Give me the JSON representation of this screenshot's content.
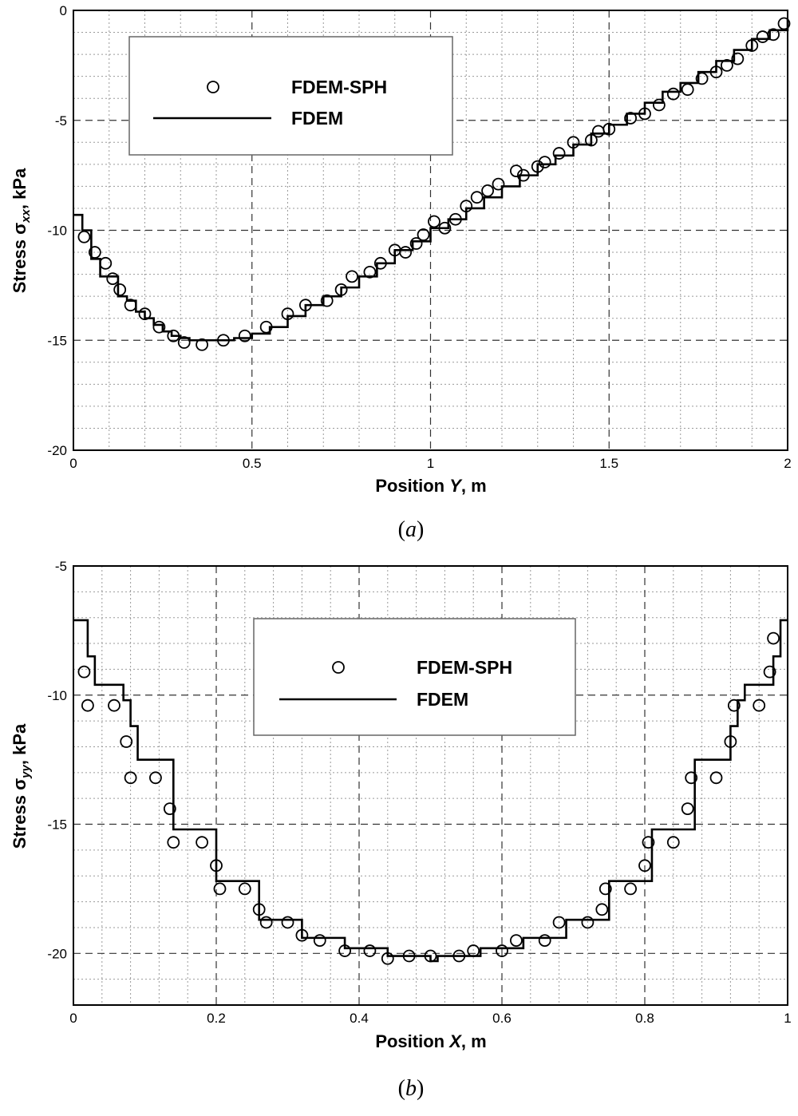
{
  "figure": {
    "panels": [
      {
        "caption_letter": "a",
        "x_axis_label": {
          "prefix": "Position ",
          "var": "Y",
          "suffix": ", m"
        },
        "y_axis_label": {
          "prefix": "Stress σ",
          "sub": "xx",
          "suffix": ", kPa"
        },
        "legend": {
          "markers_label": "FDEM-SPH",
          "line_label": "FDEM"
        }
      },
      {
        "caption_letter": "b",
        "x_axis_label": {
          "prefix": "Position ",
          "var": "X",
          "suffix": ", m"
        },
        "y_axis_label": {
          "prefix": "Stress σ",
          "sub": "yy",
          "suffix": ", kPa"
        },
        "legend": {
          "markers_label": "FDEM-SPH",
          "line_label": "FDEM"
        }
      }
    ]
  },
  "chart_data": [
    {
      "type": "line",
      "xlim": [
        0,
        2
      ],
      "ylim": [
        -20,
        0
      ],
      "x_ticks": [
        "0",
        "0.5",
        "1",
        "1.5",
        "2"
      ],
      "y_ticks": [
        "0",
        "-5",
        "-10",
        "-15",
        "-20"
      ],
      "x_tick_values": [
        0,
        0.5,
        1,
        1.5,
        2
      ],
      "y_tick_values": [
        0,
        -5,
        -10,
        -15,
        -20
      ],
      "grid": true,
      "legend_position": "top-left",
      "series": [
        {
          "name": "FDEM-SPH",
          "style": "open-circle",
          "x": [
            0.03,
            0.06,
            0.09,
            0.11,
            0.13,
            0.16,
            0.2,
            0.24,
            0.28,
            0.31,
            0.36,
            0.42,
            0.48,
            0.54,
            0.6,
            0.65,
            0.71,
            0.75,
            0.78,
            0.83,
            0.86,
            0.9,
            0.93,
            0.96,
            0.98,
            1.01,
            1.04,
            1.07,
            1.1,
            1.13,
            1.16,
            1.19,
            1.24,
            1.26,
            1.3,
            1.32,
            1.36,
            1.4,
            1.45,
            1.47,
            1.5,
            1.56,
            1.6,
            1.64,
            1.68,
            1.72,
            1.76,
            1.8,
            1.83,
            1.86,
            1.9,
            1.93,
            1.96,
            1.99
          ],
          "y": [
            -10.3,
            -11.0,
            -11.5,
            -12.2,
            -12.7,
            -13.4,
            -13.8,
            -14.4,
            -14.8,
            -15.1,
            -15.2,
            -15.0,
            -14.8,
            -14.4,
            -13.8,
            -13.4,
            -13.2,
            -12.7,
            -12.1,
            -11.9,
            -11.5,
            -10.9,
            -11.0,
            -10.6,
            -10.2,
            -9.6,
            -9.9,
            -9.5,
            -8.9,
            -8.5,
            -8.2,
            -7.9,
            -7.3,
            -7.5,
            -7.1,
            -6.9,
            -6.5,
            -6.0,
            -5.9,
            -5.5,
            -5.4,
            -4.9,
            -4.7,
            -4.3,
            -3.8,
            -3.6,
            -3.1,
            -2.8,
            -2.5,
            -2.2,
            -1.6,
            -1.2,
            -1.1,
            -0.6
          ]
        },
        {
          "name": "FDEM",
          "style": "step-line",
          "x": [
            0.0,
            0.025,
            0.05,
            0.075,
            0.1,
            0.125,
            0.15,
            0.175,
            0.2,
            0.225,
            0.25,
            0.275,
            0.3,
            0.325,
            0.35,
            0.4,
            0.45,
            0.5,
            0.55,
            0.6,
            0.65,
            0.7,
            0.75,
            0.8,
            0.85,
            0.9,
            0.95,
            1.0,
            1.05,
            1.1,
            1.15,
            1.2,
            1.25,
            1.3,
            1.35,
            1.4,
            1.45,
            1.5,
            1.55,
            1.6,
            1.65,
            1.7,
            1.75,
            1.8,
            1.85,
            1.9,
            1.95,
            2.0
          ],
          "y": [
            -9.3,
            -10.0,
            -11.3,
            -12.1,
            -12.1,
            -13.0,
            -13.2,
            -13.7,
            -14.0,
            -14.3,
            -14.6,
            -14.8,
            -14.9,
            -15.0,
            -15.0,
            -15.0,
            -14.9,
            -14.7,
            -14.4,
            -13.9,
            -13.4,
            -13.0,
            -12.6,
            -12.1,
            -11.5,
            -10.9,
            -10.5,
            -9.9,
            -9.5,
            -9.0,
            -8.5,
            -8.0,
            -7.5,
            -7.0,
            -6.6,
            -6.1,
            -5.6,
            -5.2,
            -4.7,
            -4.2,
            -3.7,
            -3.3,
            -2.8,
            -2.3,
            -1.8,
            -1.3,
            -0.9,
            -0.4
          ]
        }
      ]
    },
    {
      "type": "line",
      "xlim": [
        0,
        1
      ],
      "ylim": [
        -22,
        -5
      ],
      "x_ticks": [
        "0",
        "0.2",
        "0.4",
        "0.6",
        "0.8",
        "1"
      ],
      "y_ticks": [
        "-5",
        "-10",
        "-15",
        "-20"
      ],
      "x_tick_values": [
        0,
        0.2,
        0.4,
        0.6,
        0.8,
        1
      ],
      "y_tick_values": [
        -5,
        -10,
        -15,
        -20
      ],
      "grid": true,
      "legend_position": "top-center",
      "series": [
        {
          "name": "FDEM-SPH",
          "style": "open-circle",
          "x": [
            0.015,
            0.02,
            0.057,
            0.074,
            0.08,
            0.115,
            0.135,
            0.14,
            0.18,
            0.2,
            0.205,
            0.24,
            0.26,
            0.27,
            0.3,
            0.32,
            0.345,
            0.38,
            0.415,
            0.44,
            0.47,
            0.5,
            0.54,
            0.56,
            0.6,
            0.62,
            0.66,
            0.68,
            0.72,
            0.74,
            0.745,
            0.78,
            0.8,
            0.805,
            0.84,
            0.86,
            0.865,
            0.9,
            0.92,
            0.925,
            0.96,
            0.975,
            0.98
          ],
          "y": [
            -9.1,
            -10.4,
            -10.4,
            -11.8,
            -13.2,
            -13.2,
            -14.4,
            -15.7,
            -15.7,
            -16.6,
            -17.5,
            -17.5,
            -18.3,
            -18.8,
            -18.8,
            -19.3,
            -19.5,
            -19.9,
            -19.9,
            -20.2,
            -20.1,
            -20.1,
            -20.1,
            -19.9,
            -19.9,
            -19.5,
            -19.5,
            -18.8,
            -18.8,
            -18.3,
            -17.5,
            -17.5,
            -16.6,
            -15.7,
            -15.7,
            -14.4,
            -13.2,
            -13.2,
            -11.8,
            -10.4,
            -10.4,
            -9.1,
            -7.8
          ]
        },
        {
          "name": "FDEM",
          "style": "step-line",
          "x": [
            0.0,
            0.01,
            0.02,
            0.03,
            0.06,
            0.07,
            0.08,
            0.09,
            0.13,
            0.14,
            0.19,
            0.2,
            0.25,
            0.26,
            0.31,
            0.32,
            0.37,
            0.38,
            0.43,
            0.44,
            0.49,
            0.5,
            0.51,
            0.56,
            0.57,
            0.62,
            0.63,
            0.68,
            0.69,
            0.74,
            0.75,
            0.8,
            0.81,
            0.86,
            0.87,
            0.91,
            0.92,
            0.93,
            0.94,
            0.97,
            0.98,
            0.99,
            1.0
          ],
          "y": [
            -7.1,
            -7.1,
            -8.5,
            -9.6,
            -9.6,
            -10.2,
            -11.2,
            -12.5,
            -12.5,
            -15.2,
            -15.2,
            -17.2,
            -17.2,
            -18.7,
            -18.7,
            -19.4,
            -19.4,
            -19.8,
            -19.8,
            -20.1,
            -20.1,
            -20.3,
            -20.1,
            -20.1,
            -19.8,
            -19.8,
            -19.4,
            -19.4,
            -18.7,
            -18.7,
            -17.2,
            -17.2,
            -15.2,
            -15.2,
            -12.5,
            -12.5,
            -11.2,
            -10.2,
            -9.6,
            -9.6,
            -8.5,
            -7.1,
            -7.1
          ]
        }
      ]
    }
  ]
}
